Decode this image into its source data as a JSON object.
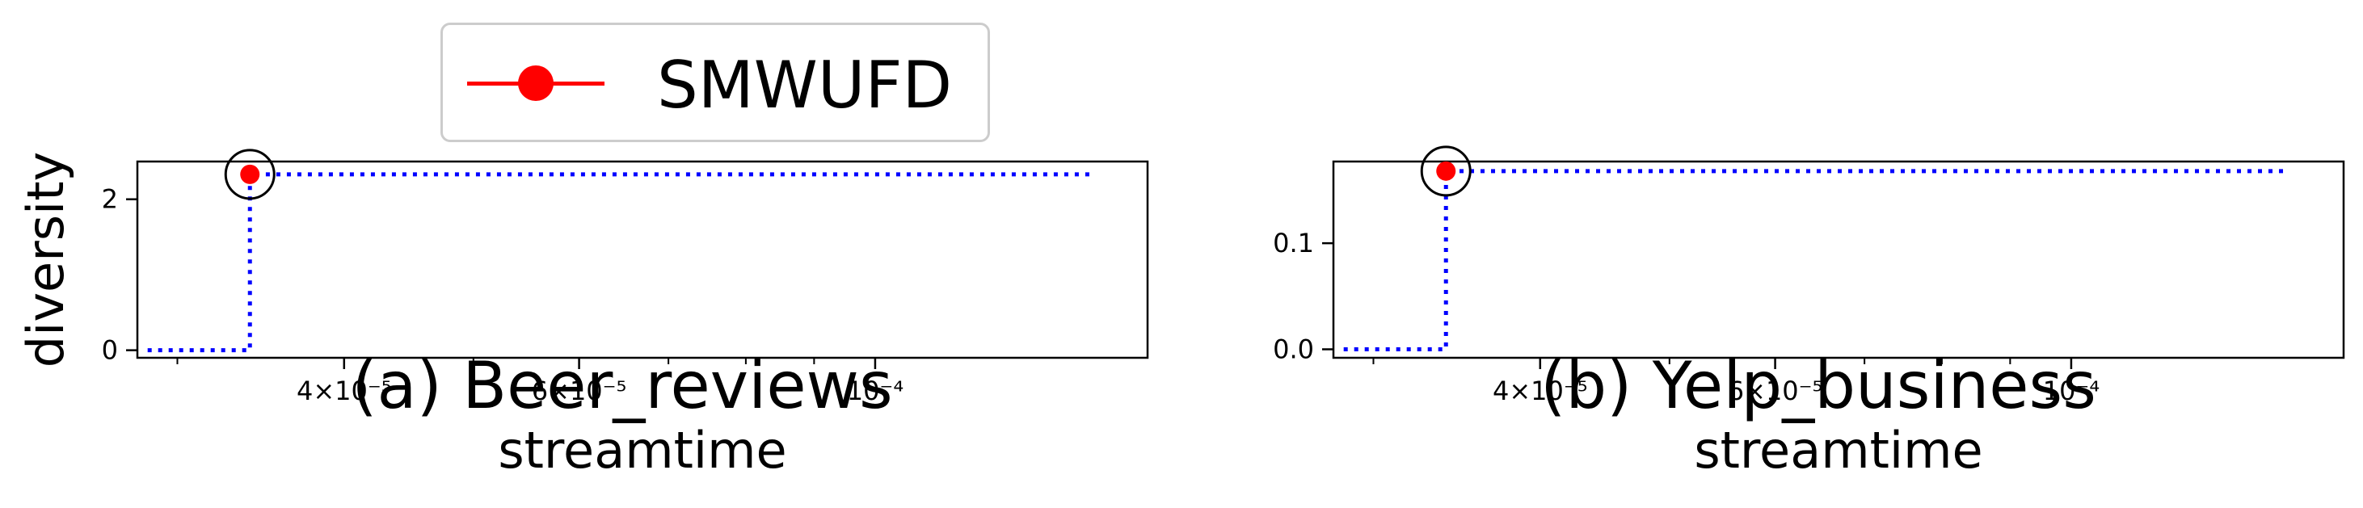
{
  "legend": {
    "series_name": "SMWUFD",
    "color": "#ff0000"
  },
  "colors": {
    "series": "#ff0000",
    "step_line": "#0000ff",
    "highlight_ring": "#000000"
  },
  "chart_data": [
    {
      "type": "line",
      "subtitle": "(a) Beer_reviews",
      "xlabel": "streamtime",
      "ylabel": "diversity",
      "x_scale": "log",
      "xlim": [
        2.8e-05,
        0.00016
      ],
      "ylim": [
        -0.1,
        2.5
      ],
      "x_ticks": [
        {
          "value": 4e-05,
          "label": "4×10⁻⁵"
        },
        {
          "value": 6e-05,
          "label": "6×10⁻⁵"
        },
        {
          "value": 0.0001,
          "label": "10⁻⁴"
        }
      ],
      "x_minor_ticks": [
        3e-05,
        5e-05,
        7e-05,
        8e-05,
        9e-05
      ],
      "y_ticks": [
        0,
        2
      ],
      "series": [
        {
          "name": "SMWUFD",
          "x": [
            3.4e-05
          ],
          "y": [
            2.33
          ]
        }
      ],
      "step_line": {
        "x": [
          2.85e-05,
          3.4e-05,
          3.4e-05,
          0.000145
        ],
        "y": [
          0,
          0,
          2.33,
          2.33
        ]
      },
      "highlight": {
        "x": 3.4e-05,
        "y": 2.33
      }
    },
    {
      "type": "line",
      "subtitle": "(b) Yelp_business",
      "xlabel": "streamtime",
      "ylabel": "",
      "x_scale": "log",
      "xlim": [
        2.8e-05,
        0.00016
      ],
      "ylim": [
        -0.008,
        0.177
      ],
      "x_ticks": [
        {
          "value": 4e-05,
          "label": "4×10⁻⁵"
        },
        {
          "value": 6e-05,
          "label": "6×10⁻⁵"
        },
        {
          "value": 0.0001,
          "label": "10⁻⁴"
        }
      ],
      "x_minor_ticks": [
        3e-05,
        5e-05,
        7e-05,
        8e-05,
        9e-05
      ],
      "y_ticks": [
        0.0,
        0.1
      ],
      "y_tick_labels": [
        "0.0",
        "0.1"
      ],
      "series": [
        {
          "name": "SMWUFD",
          "x": [
            3.4e-05
          ],
          "y": [
            0.168
          ]
        }
      ],
      "step_line": {
        "x": [
          2.85e-05,
          3.4e-05,
          3.4e-05,
          0.000145
        ],
        "y": [
          0,
          0,
          0.168,
          0.168
        ]
      },
      "highlight": {
        "x": 3.4e-05,
        "y": 0.168
      }
    }
  ]
}
